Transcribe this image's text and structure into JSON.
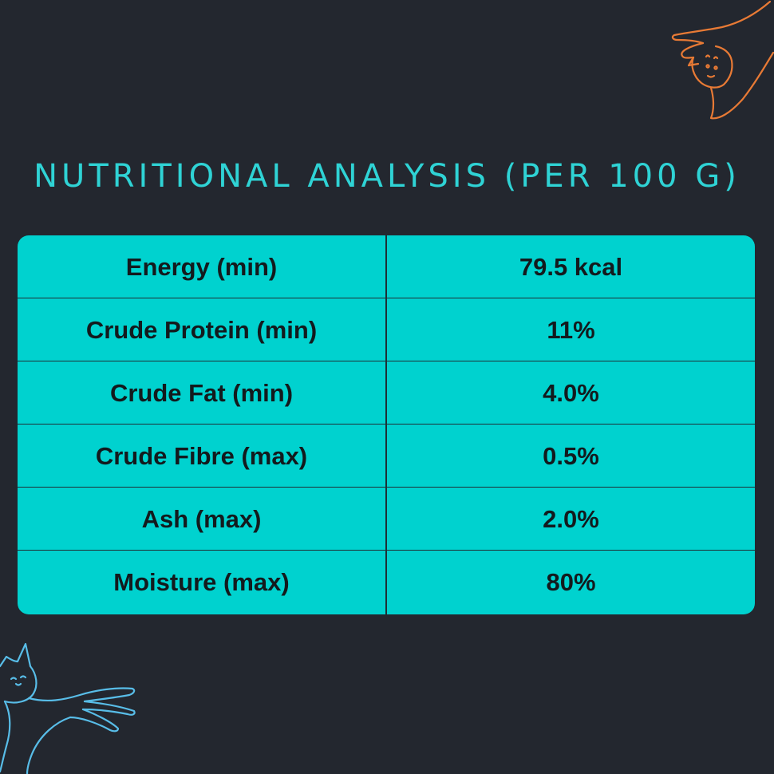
{
  "title": "NUTRITIONAL ANALYSIS (PER 100 G)",
  "rows": [
    {
      "label": "Energy (min)",
      "value": "79.5 kcal"
    },
    {
      "label": "Crude Protein (min)",
      "value": "11%"
    },
    {
      "label": "Crude Fat (min)",
      "value": "4.0%"
    },
    {
      "label": "Crude Fibre (max)",
      "value": "0.5%"
    },
    {
      "label": "Ash (max)",
      "value": "2.0%"
    },
    {
      "label": "Moisture (max)",
      "value": "80%"
    }
  ],
  "colors": {
    "background": "#23272f",
    "accent": "#2fd3d5",
    "table": "#00d2cf",
    "cat_orange": "#e87a35",
    "cat_blue": "#58bde8"
  },
  "icons": [
    "cat-doodle-orange-icon",
    "cat-doodle-blue-icon"
  ]
}
